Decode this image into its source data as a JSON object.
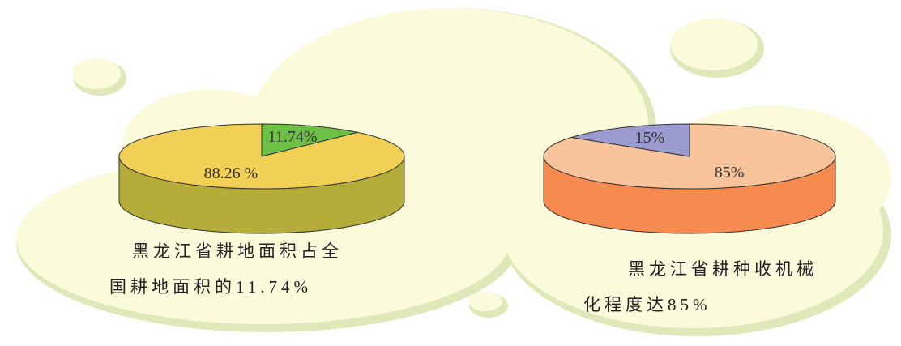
{
  "chart_data": [
    {
      "type": "pie3d",
      "title": "黑龙江省耕地面积占全国耕地面积的11.74%",
      "values": [
        11.74,
        88.26
      ],
      "value_labels": [
        "11.74%",
        "88.26 %"
      ],
      "colors": [
        "#6dbf45",
        "#f2cf55"
      ],
      "side_colors": [
        "#4f9a30",
        "#b5ac3a"
      ]
    },
    {
      "type": "pie3d",
      "title": "黑龙江省耕种收机械化程度达85%",
      "values": [
        85,
        15
      ],
      "value_labels": [
        "85%",
        "15%"
      ],
      "colors": [
        "#f9c39c",
        "#9b9bd0"
      ],
      "side_colors": [
        "#f68a4f",
        "#6d6dab"
      ]
    }
  ]
}
